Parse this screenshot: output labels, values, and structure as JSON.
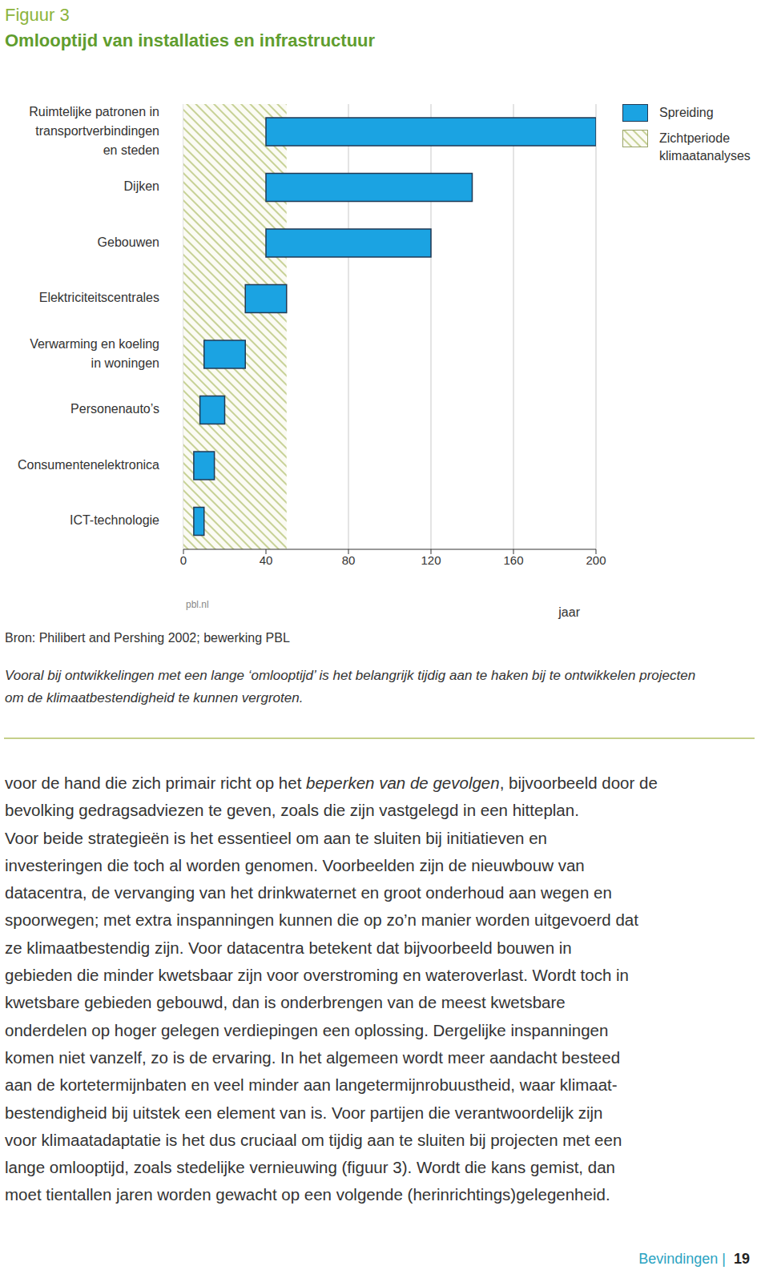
{
  "header": {
    "figure": "Figuur 3",
    "title": "Omlooptijd van installaties en infrastructuur"
  },
  "chart_data": {
    "type": "bar",
    "orientation": "horizontal",
    "categories": [
      "Ruimtelijke patronen in transportverbindingen en steden",
      "Dijken",
      "Gebouwen",
      "Elektriciteitscentrales",
      "Verwarming en koeling in woningen",
      "Personenauto’s",
      "Consumentenelektronica",
      "ICT-technologie"
    ],
    "series": [
      {
        "name": "Spreiding",
        "color": "#1ba3e2",
        "values": [
          [
            40,
            200
          ],
          [
            40,
            140
          ],
          [
            40,
            120
          ],
          [
            30,
            50
          ],
          [
            10,
            30
          ],
          [
            8,
            20
          ],
          [
            5,
            15
          ],
          [
            5,
            10
          ]
        ]
      }
    ],
    "band": {
      "name": "Zichtperiode klimaatanalyses",
      "range": [
        0,
        50
      ],
      "color": "#c7d196"
    },
    "xlim": [
      0,
      200
    ],
    "xticks": [
      0,
      40,
      80,
      120,
      160,
      200
    ],
    "x_label": "jaar",
    "grid": true,
    "legend": "upper right",
    "credit": "pbl.nl"
  },
  "source": "Bron: Philibert and Pershing 2002; bewerking PBL",
  "caption": "Vooral bij ontwikkelingen met een lange ‘omlooptijd’ is het belangrijk tijdig aan te haken bij te ontwikkelen projecten om de klimaatbestendigheid te kunnen vergroten.",
  "body": {
    "emphasis": "beperken van de gevolgen",
    "lines": [
      "voor de hand die zich primair richt op het beperken van de gevolgen, bijvoorbeeld door de",
      "bevolking gedragsadviezen te geven, zoals die zijn vastgelegd in een hitteplan.",
      "Voor beide strategieën is het essentieel om aan te sluiten bij initiatieven en",
      "investeringen die toch al worden genomen. Voorbeelden zijn de nieuwbouw van",
      "datacentra, de vervanging van het drinkwaternet en groot onderhoud aan wegen en",
      "spoorwegen; met extra inspanningen kunnen die op zo’n manier worden uitgevoerd dat",
      "ze klimaatbestendig zijn. Voor datacentra betekent dat bijvoorbeeld bouwen in",
      "gebieden die minder kwetsbaar zijn voor overstroming en wateroverlast. Wordt toch in",
      "kwetsbare gebieden gebouwd, dan is onderbrengen van de meest kwetsbare",
      "onderdelen op hoger gelegen verdiepingen een oplossing. Dergelijke inspanningen",
      "komen niet vanzelf, zo is de ervaring. In het algemeen wordt meer aandacht besteed",
      "aan de kortetermijnbaten en veel minder aan langetermijnrobuustheid, waar klimaat-",
      "bestendigheid bij uitstek een element van is. Voor partijen die verantwoordelijk zijn",
      "voor klimaatadaptatie is het dus cruciaal om tijdig aan te sluiten bij projecten met een",
      "lange omlooptijd, zoals stedelijke vernieuwing (figuur 3). Wordt die kans gemist, dan",
      "moet tientallen jaren worden gewacht op een volgende (herinrichtings)gelegenheid."
    ]
  },
  "footer": {
    "section": "Bevindingen",
    "separator": "|",
    "page": 19
  }
}
